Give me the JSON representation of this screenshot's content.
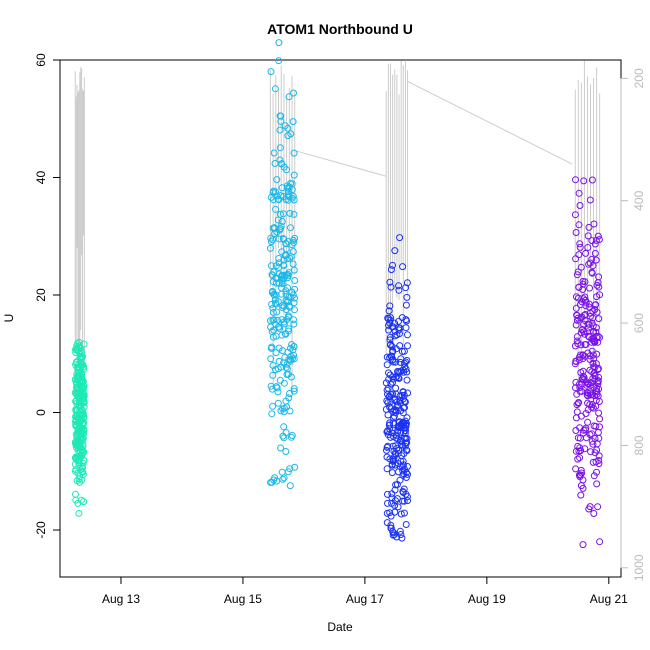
{
  "chart_data": {
    "type": "scatter",
    "title": "ATOM1 Northbound U",
    "xlabel": "Date",
    "ylabel": "U",
    "x_ticks": [
      "Aug 13",
      "Aug 15",
      "Aug 17",
      "Aug 19",
      "Aug 21"
    ],
    "x_range_days": [
      12.0,
      21.2
    ],
    "y_ticks": [
      -20,
      0,
      20,
      40,
      60
    ],
    "ylim": [
      -28,
      60
    ],
    "y2_ticks": [
      200,
      400,
      600,
      800,
      1000
    ],
    "y2_range": [
      1015,
      170
    ],
    "y2_label": "",
    "point_style": "open circle",
    "colors": {
      "deployment_1": "#1de9b6",
      "deployment_2": "#1ab8ea",
      "deployment_3": "#1c33f0",
      "deployment_4": "#7a13e8",
      "secondary_line": "#cccccc"
    },
    "series": [
      {
        "date_start": "Aug 12.25",
        "date_end": "Aug 12.40",
        "color": "#1de9b6",
        "u_mean": 0,
        "u_min": -21,
        "u_max": 12
      },
      {
        "date_start": "Aug 15.45",
        "date_end": "Aug 15.85",
        "color": "#1ab8ea",
        "u_mean": 20,
        "u_min": -14,
        "u_max": 67
      },
      {
        "date_start": "Aug 17.35",
        "date_end": "Aug 17.70",
        "color": "#1c33f0",
        "u_mean": 0,
        "u_min": -22,
        "u_max": 33
      },
      {
        "date_start": "Aug 20.45",
        "date_end": "Aug 20.85",
        "color": "#7a13e8",
        "u_mean": 10,
        "u_min": -25,
        "u_max": 40
      }
    ],
    "secondary_series": {
      "name": "",
      "axis": "right",
      "connectors": [
        {
          "from_day": 15.85,
          "from_y2": 318,
          "to_day": 17.35,
          "to_y2": 360
        },
        {
          "from_day": 17.7,
          "from_y2": 205,
          "to_day": 20.4,
          "to_y2": 340
        }
      ]
    }
  }
}
